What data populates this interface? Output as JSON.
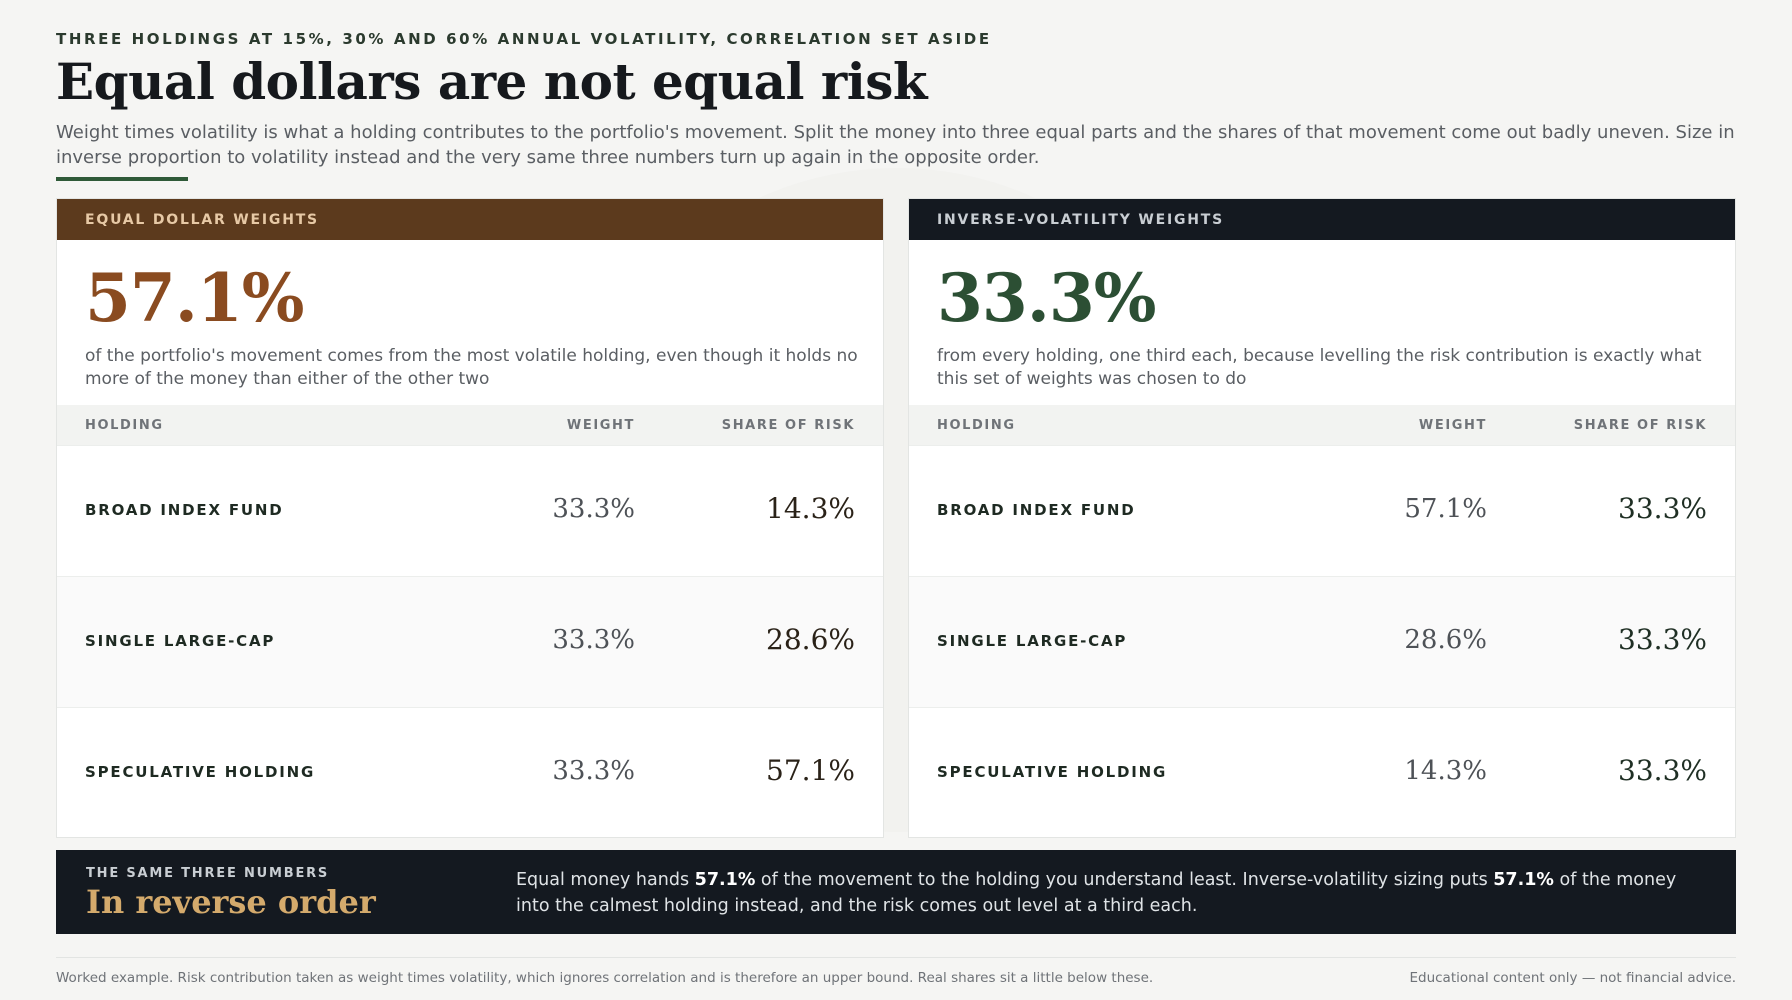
{
  "kicker": "THREE HOLDINGS AT 15%, 30% AND 60% ANNUAL VOLATILITY, CORRELATION SET ASIDE",
  "title": "Equal dollars are not equal risk",
  "subtitle": "Weight times volatility is what a holding contributes to the portfolio's movement. Split the money into three equal parts and the shares of that movement come out badly uneven. Size in inverse proportion to volatility instead and the very same three numbers turn up again in the opposite order.",
  "panels": {
    "left": {
      "header": "EQUAL DOLLAR WEIGHTS",
      "big": "57.1%",
      "big_desc": "of the portfolio's movement comes from the most volatile holding, even though it holds no more of the money than either of the other two",
      "columns": [
        "HOLDING",
        "WEIGHT",
        "SHARE OF RISK"
      ],
      "rows": [
        {
          "name": "BROAD INDEX FUND",
          "weight": "33.3%",
          "risk": "14.3%"
        },
        {
          "name": "SINGLE LARGE-CAP",
          "weight": "33.3%",
          "risk": "28.6%"
        },
        {
          "name": "SPECULATIVE HOLDING",
          "weight": "33.3%",
          "risk": "57.1%"
        }
      ]
    },
    "right": {
      "header": "INVERSE-VOLATILITY WEIGHTS",
      "big": "33.3%",
      "big_desc": "from every holding, one third each, because levelling the risk contribution is exactly what this set of weights was chosen to do",
      "columns": [
        "HOLDING",
        "WEIGHT",
        "SHARE OF RISK"
      ],
      "rows": [
        {
          "name": "BROAD INDEX FUND",
          "weight": "57.1%",
          "risk": "33.3%"
        },
        {
          "name": "SINGLE LARGE-CAP",
          "weight": "28.6%",
          "risk": "33.3%"
        },
        {
          "name": "SPECULATIVE HOLDING",
          "weight": "14.3%",
          "risk": "33.3%"
        }
      ]
    }
  },
  "banner": {
    "kicker": "THE SAME THREE NUMBERS",
    "title": "In reverse order",
    "p1": "Equal money hands ",
    "b1": "57.1%",
    "p2": " of the movement to the holding you understand least. Inverse-volatility sizing puts ",
    "b2": "57.1%",
    "p3": " of the money into the calmest holding instead, and the risk comes out level at a third each."
  },
  "footer": {
    "left": "Worked example. Risk contribution taken as weight times volatility, which ignores correlation and is therefore an upper bound. Real shares sit a little below these.",
    "right": "Educational content only — not financial advice."
  },
  "colors": {
    "left_header": "#5c3a1d",
    "left_accent": "#8a4b20",
    "right_header": "#141920",
    "right_accent": "#2c4f34",
    "banner_title": "#d4aa6c"
  }
}
